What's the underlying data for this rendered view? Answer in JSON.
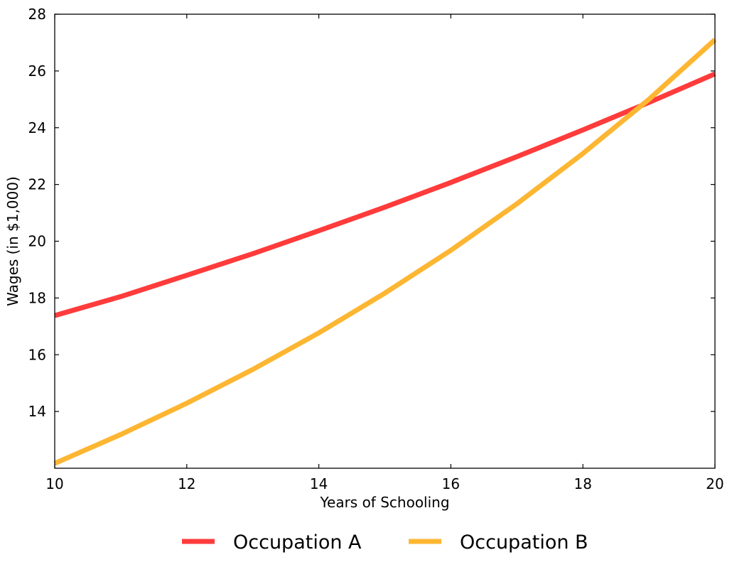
{
  "chart_data": {
    "type": "line",
    "title": "",
    "xlabel": "Years of Schooling",
    "ylabel": "Wages (in $1,000)",
    "xlim": [
      10,
      20
    ],
    "ylim": [
      12,
      28
    ],
    "x_ticks": [
      10,
      12,
      14,
      16,
      18,
      20
    ],
    "y_ticks": [
      14,
      16,
      18,
      20,
      22,
      24,
      26,
      28
    ],
    "grid": false,
    "legend_position": "bottom-center",
    "x": [
      10,
      11,
      12,
      13,
      14,
      15,
      16,
      17,
      18,
      19,
      20
    ],
    "series": [
      {
        "name": "Occupation A",
        "color": "#ff3b3b",
        "values": [
          17.38,
          18.05,
          18.8,
          19.56,
          20.37,
          21.2,
          22.07,
          22.98,
          23.92,
          24.89,
          25.9
        ]
      },
      {
        "name": "Occupation B",
        "color": "#fdb632",
        "values": [
          12.17,
          13.19,
          14.29,
          15.48,
          16.77,
          18.17,
          19.68,
          21.32,
          23.09,
          25.0,
          27.1
        ]
      }
    ]
  }
}
